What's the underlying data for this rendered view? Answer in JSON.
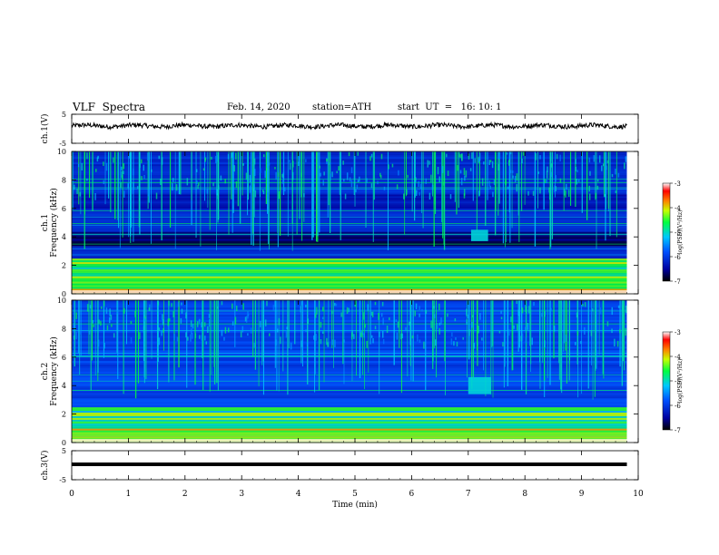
{
  "header": {
    "title": "VLF  Spectra",
    "date": "Feb. 14, 2020",
    "station": "station=ATH",
    "start_ut": "start  UT  =   16: 10: 1"
  },
  "chart_data": [
    {
      "type": "line",
      "panel": "ch1-waveform",
      "ylabel": "ch.1(V)",
      "ylim": [
        -5,
        5
      ],
      "yticks": [
        "5",
        "-5"
      ],
      "x_range_min": [
        0,
        9.8
      ],
      "series": [
        {
          "approx_level": 1,
          "style": "noisy waveform"
        }
      ]
    },
    {
      "type": "heatmap",
      "panel": "ch1-spectrogram",
      "ylabel": "Frequency  (kHz)",
      "ylabel_channel": "ch.1",
      "ylim": [
        0,
        10
      ],
      "yticks": [
        "0",
        "2",
        "4",
        "6",
        "8",
        "10"
      ],
      "x_range_min": [
        0,
        9.8
      ],
      "colorbar": {
        "label": "log(PSD)(V²/Hz)",
        "ticks": [
          "-3",
          "-4",
          "-5",
          "-6",
          "-7"
        ],
        "range": [
          -7,
          -3
        ]
      },
      "features": {
        "bright_band_khz": [
          0,
          2.5
        ],
        "dark_band_khz": [
          3.4,
          4.4
        ],
        "burst_time_min": [
          7.05,
          7.35
        ],
        "burst_freq_khz": [
          3.7,
          4.5
        ]
      }
    },
    {
      "type": "heatmap",
      "panel": "ch2-spectrogram",
      "ylabel": "Frequency  (kHz)",
      "ylabel_channel": "ch.2",
      "ylim": [
        0,
        10
      ],
      "yticks": [
        "0",
        "2",
        "4",
        "6",
        "8",
        "10"
      ],
      "x_range_min": [
        0,
        9.8
      ],
      "colorbar": {
        "label": "log(PSD)(V²/Hz)",
        "ticks": [
          "-3",
          "-4",
          "-5",
          "-6",
          "-7"
        ],
        "range": [
          -7,
          -3
        ]
      },
      "features": {
        "bright_band_khz": [
          0,
          2.5
        ],
        "burst_time_min": [
          7.0,
          7.4
        ],
        "burst_freq_khz": [
          3.4,
          4.6
        ]
      }
    },
    {
      "type": "line",
      "panel": "ch3-waveform",
      "ylabel": "ch.3(V)",
      "ylim": [
        -5,
        5
      ],
      "yticks": [
        "5",
        "-5"
      ],
      "x_range_min": [
        0,
        9.8
      ],
      "series": [
        {
          "approx_level": 0.3,
          "style": "thick flat line"
        }
      ]
    }
  ],
  "xaxis": {
    "label": "Time  (min)",
    "range": [
      0,
      10
    ],
    "ticks": [
      "0",
      "1",
      "2",
      "3",
      "4",
      "5",
      "6",
      "7",
      "8",
      "9",
      "10"
    ]
  }
}
